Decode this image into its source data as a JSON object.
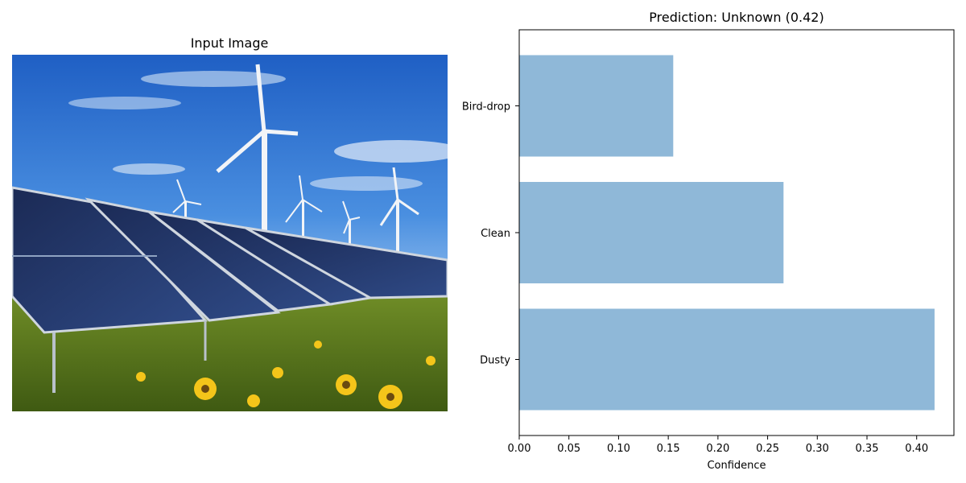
{
  "left_panel": {
    "title": "Input Image",
    "image_description_icon": "solar-panels-wind-turbines-photo"
  },
  "chart_data": {
    "type": "bar",
    "orientation": "horizontal",
    "title": "Prediction: Unknown (0.42)",
    "xlabel": "Confidence",
    "ylabel": "",
    "categories": [
      "Dusty",
      "Clean",
      "Bird-drop"
    ],
    "values": [
      0.418,
      0.266,
      0.155
    ],
    "xlim": [
      0.0,
      0.4375
    ],
    "xticks": [
      "0.00",
      "0.05",
      "0.10",
      "0.15",
      "0.20",
      "0.25",
      "0.30",
      "0.35",
      "0.40"
    ],
    "bar_color": "#8fb8d8",
    "grid": false,
    "legend": "none"
  }
}
